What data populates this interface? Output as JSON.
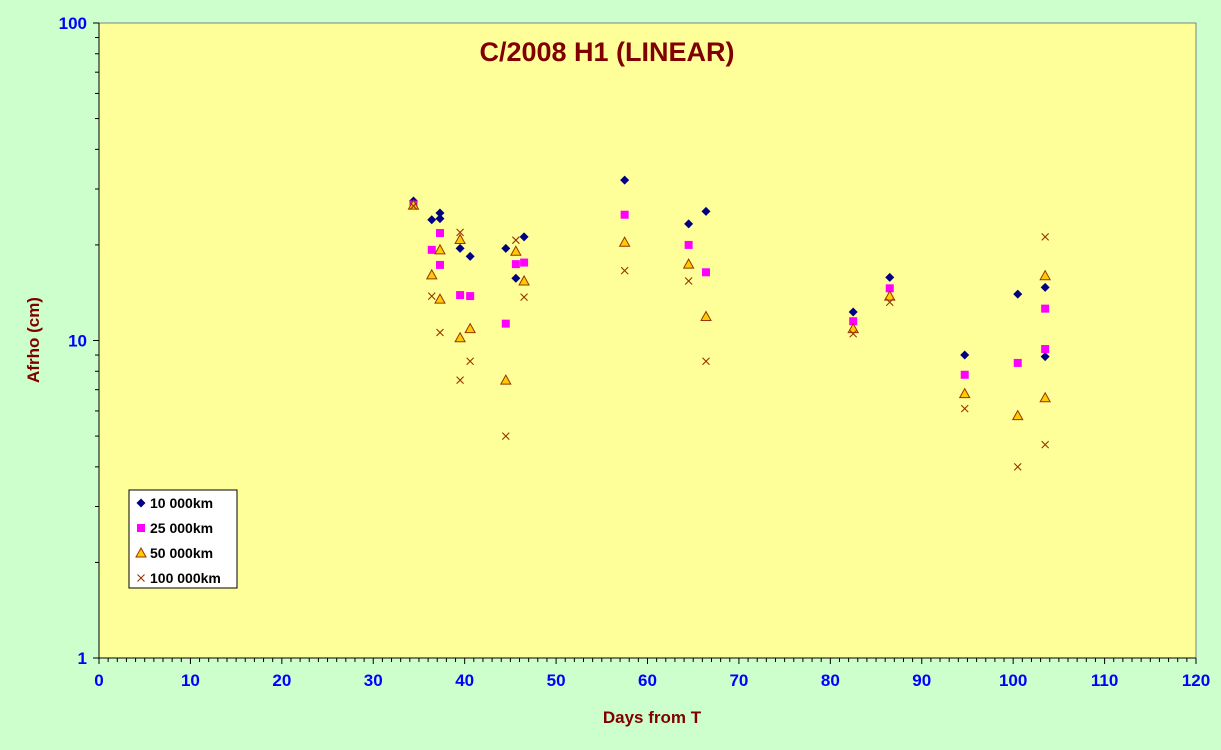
{
  "chart_data": {
    "type": "scatter",
    "title": "C/2008 H1 (LINEAR)",
    "xlabel": "Days from T",
    "ylabel": "Afrho (cm)",
    "xlim": [
      0,
      120
    ],
    "ylim": [
      1,
      100
    ],
    "y_scale": "log",
    "x_ticks": [
      0,
      10,
      20,
      30,
      40,
      50,
      60,
      70,
      80,
      90,
      100,
      110,
      120
    ],
    "y_ticks": [
      1,
      10,
      100
    ],
    "grid": false,
    "legend_position": "lower-left",
    "colors": {
      "outer_background": "#ccffcc",
      "plot_background": "#ffff99",
      "axis": "#000000",
      "tick_labels": "#0000ff",
      "titles": "#800000"
    },
    "series": [
      {
        "name": "10 000km",
        "marker": "diamond",
        "color": "#000080",
        "points": [
          [
            34.4,
            27.5
          ],
          [
            36.4,
            24.0
          ],
          [
            37.3,
            25.2
          ],
          [
            37.3,
            24.2
          ],
          [
            39.5,
            19.5
          ],
          [
            40.6,
            18.4
          ],
          [
            44.5,
            19.5
          ],
          [
            45.6,
            15.7
          ],
          [
            46.5,
            21.2
          ],
          [
            57.5,
            32.0
          ],
          [
            64.5,
            23.3
          ],
          [
            66.4,
            25.5
          ],
          [
            82.5,
            12.3
          ],
          [
            86.5,
            15.8
          ],
          [
            94.7,
            9.0
          ],
          [
            100.5,
            14.0
          ],
          [
            103.5,
            14.7
          ],
          [
            103.5,
            8.9
          ]
        ]
      },
      {
        "name": "25 000km",
        "marker": "square",
        "color": "#ff00ff",
        "points": [
          [
            34.4,
            26.8
          ],
          [
            36.4,
            19.3
          ],
          [
            37.3,
            21.8
          ],
          [
            37.3,
            17.3
          ],
          [
            39.5,
            13.9
          ],
          [
            40.6,
            13.8
          ],
          [
            44.5,
            11.3
          ],
          [
            45.6,
            17.4
          ],
          [
            46.5,
            17.6
          ],
          [
            57.5,
            24.9
          ],
          [
            64.5,
            20.0
          ],
          [
            66.4,
            16.4
          ],
          [
            82.5,
            11.5
          ],
          [
            86.5,
            14.6
          ],
          [
            94.7,
            7.8
          ],
          [
            100.5,
            8.5
          ],
          [
            103.5,
            12.6
          ],
          [
            103.5,
            9.4
          ]
        ]
      },
      {
        "name": "50 000km",
        "marker": "triangle",
        "color": "#ffcc00",
        "stroke": "#993300",
        "points": [
          [
            34.4,
            26.7
          ],
          [
            36.4,
            16.1
          ],
          [
            37.3,
            19.3
          ],
          [
            37.3,
            13.5
          ],
          [
            39.5,
            20.8
          ],
          [
            39.5,
            10.2
          ],
          [
            40.6,
            10.9
          ],
          [
            44.5,
            7.5
          ],
          [
            45.6,
            19.1
          ],
          [
            46.5,
            15.4
          ],
          [
            57.5,
            20.4
          ],
          [
            64.5,
            17.4
          ],
          [
            66.4,
            11.9
          ],
          [
            82.5,
            10.9
          ],
          [
            86.5,
            13.8
          ],
          [
            94.7,
            6.8
          ],
          [
            100.5,
            5.8
          ],
          [
            103.5,
            16.0
          ],
          [
            103.5,
            6.6
          ]
        ]
      },
      {
        "name": "100 000km",
        "marker": "x",
        "color": "#993300",
        "points": [
          [
            34.4,
            26.5
          ],
          [
            36.4,
            13.8
          ],
          [
            37.3,
            10.6
          ],
          [
            39.5,
            21.9
          ],
          [
            39.5,
            7.5
          ],
          [
            40.6,
            8.6
          ],
          [
            44.5,
            5.0
          ],
          [
            45.6,
            20.7
          ],
          [
            46.5,
            13.7
          ],
          [
            57.5,
            16.6
          ],
          [
            64.5,
            15.4
          ],
          [
            66.4,
            8.6
          ],
          [
            82.5,
            10.5
          ],
          [
            86.5,
            13.2
          ],
          [
            94.7,
            6.1
          ],
          [
            100.5,
            4.0
          ],
          [
            103.5,
            21.2
          ],
          [
            103.5,
            4.7
          ]
        ]
      }
    ]
  }
}
